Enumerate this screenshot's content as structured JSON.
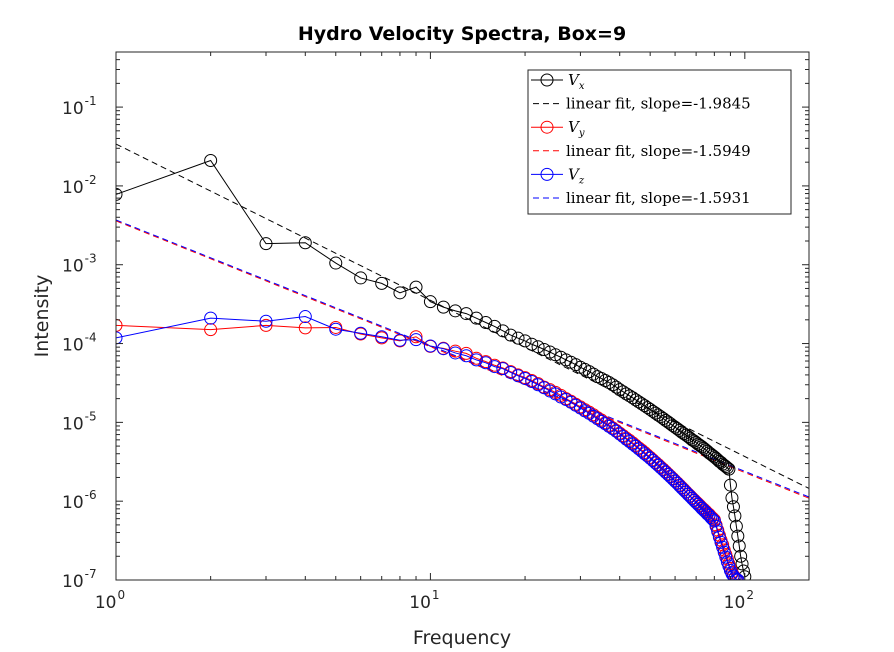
{
  "chart_data": {
    "type": "line",
    "title": "Hydro Velocity Spectra, Box=9",
    "xlabel": "Frequency",
    "ylabel": "Intensity",
    "xscale": "log",
    "yscale": "log",
    "xlim": [
      1,
      160
    ],
    "ylim": [
      1e-07,
      0.5
    ],
    "x_ticks": [
      {
        "value": 1,
        "base": "10",
        "exp": "0"
      },
      {
        "value": 10,
        "base": "10",
        "exp": "1"
      },
      {
        "value": 100,
        "base": "10",
        "exp": "2"
      }
    ],
    "y_ticks": [
      {
        "value": 1e-07,
        "base": "10",
        "exp": "-7"
      },
      {
        "value": 1e-06,
        "base": "10",
        "exp": "-6"
      },
      {
        "value": 1e-05,
        "base": "10",
        "exp": "-5"
      },
      {
        "value": 0.0001,
        "base": "10",
        "exp": "-4"
      },
      {
        "value": 0.001,
        "base": "10",
        "exp": "-3"
      },
      {
        "value": 0.01,
        "base": "10",
        "exp": "-2"
      },
      {
        "value": 0.1,
        "base": "10",
        "exp": "-1"
      }
    ],
    "grid": false,
    "legend_position": "top-right",
    "series": [
      {
        "name": "Vx",
        "subscript": "x",
        "color": "#000000",
        "kind": "markers",
        "x": [
          1,
          2,
          3,
          4,
          5,
          6,
          7,
          8,
          9,
          10,
          11,
          12,
          13,
          14,
          15,
          16,
          17,
          18,
          19,
          20,
          21,
          22,
          23,
          24,
          25,
          26,
          27,
          28,
          29,
          30,
          31,
          32,
          33,
          34,
          35,
          36,
          37,
          38,
          39,
          40,
          41,
          42,
          43,
          44,
          45,
          46,
          47,
          48,
          49,
          50,
          51,
          52,
          53,
          54,
          55,
          56,
          57,
          58,
          59,
          60,
          61,
          62,
          63,
          64,
          65,
          66,
          67,
          68,
          69,
          70,
          71,
          72,
          73,
          74,
          75,
          76,
          77,
          78,
          79,
          80,
          81,
          82,
          83,
          84,
          85,
          86,
          87,
          88,
          89,
          90,
          91,
          92,
          93,
          94,
          95,
          96,
          97,
          98,
          99,
          100
        ],
        "y": [
          0.0078,
          0.021,
          0.00185,
          0.0019,
          0.00105,
          0.00068,
          0.00058,
          0.00044,
          0.00052,
          0.00034,
          0.00029,
          0.00026,
          0.00024,
          0.00021,
          0.000185,
          0.000165,
          0.000145,
          0.000128,
          0.000117,
          0.000108,
          9.8e-05,
          9.1e-05,
          8.4e-05,
          7.8e-05,
          7.2e-05,
          6.7e-05,
          6.2e-05,
          5.8e-05,
          5.4e-05,
          5e-05,
          4.7e-05,
          4.4e-05,
          4.1e-05,
          3.8e-05,
          3.6e-05,
          3.4e-05,
          3.2e-05,
          3e-05,
          2.8e-05,
          2.6e-05,
          2.45e-05,
          2.3e-05,
          2.17e-05,
          2.05e-05,
          1.93e-05,
          1.82e-05,
          1.72e-05,
          1.63e-05,
          1.54e-05,
          1.46e-05,
          1.38e-05,
          1.31e-05,
          1.24e-05,
          1.18e-05,
          1.12e-05,
          1.06e-05,
          1.01e-05,
          9.6e-06,
          9.1e-06,
          8.7e-06,
          8.3e-06,
          7.9e-06,
          7.5e-06,
          7.2e-06,
          6.9e-06,
          6.6e-06,
          6.3e-06,
          6e-06,
          5.8e-06,
          5.55e-06,
          5.3e-06,
          5.1e-06,
          4.9e-06,
          4.7e-06,
          4.5e-06,
          4.3e-06,
          4.1e-06,
          3.95e-06,
          3.8e-06,
          3.65e-06,
          3.5e-06,
          3.35e-06,
          3.2e-06,
          3.1e-06,
          2.95e-06,
          2.85e-06,
          2.75e-06,
          2.65e-06,
          2.55e-06,
          1.6e-06,
          1.1e-06,
          8.5e-07,
          6.5e-07,
          4.8e-07,
          3.6e-07,
          2.7e-07,
          2e-07,
          1.6e-07,
          1.3e-07,
          1.1e-07
        ]
      },
      {
        "name": "linear fit, slope=-1.9845",
        "color": "#000000",
        "kind": "dashed",
        "x": [
          1,
          160
        ],
        "y": [
          0.034,
          1.45e-06
        ]
      },
      {
        "name": "Vy",
        "subscript": "y",
        "color": "#ff0000",
        "kind": "markers",
        "x": [
          1,
          2,
          3,
          4,
          5,
          6,
          7,
          8,
          9,
          10,
          11,
          12,
          13,
          14,
          15,
          16,
          17,
          18,
          19,
          20,
          21,
          22,
          23,
          24,
          25,
          26,
          27,
          28,
          29,
          30,
          31,
          32,
          33,
          34,
          35,
          36,
          37,
          38,
          39,
          40,
          41,
          42,
          43,
          44,
          45,
          46,
          47,
          48,
          49,
          50,
          51,
          52,
          53,
          54,
          55,
          56,
          57,
          58,
          59,
          60,
          61,
          62,
          63,
          64,
          65,
          66,
          67,
          68,
          69,
          70,
          71,
          72,
          73,
          74,
          75,
          76,
          77,
          78,
          79,
          80,
          81,
          82,
          83,
          84,
          85,
          86,
          87,
          88,
          89,
          90,
          91,
          92,
          93,
          94,
          95
        ],
        "y": [
          0.00017,
          0.00015,
          0.00017,
          0.000158,
          0.00016,
          0.000132,
          0.000118,
          0.000108,
          0.000122,
          9.2e-05,
          8.7e-05,
          8e-05,
          7.5e-05,
          6.5e-05,
          5.9e-05,
          5.3e-05,
          4.9e-05,
          4.4e-05,
          4e-05,
          3.7e-05,
          3.4e-05,
          3.1e-05,
          2.8e-05,
          2.6e-05,
          2.4e-05,
          2.2e-05,
          2e-05,
          1.85e-05,
          1.7e-05,
          1.57e-05,
          1.45e-05,
          1.35e-05,
          1.25e-05,
          1.15e-05,
          1.07e-05,
          9.9e-06,
          9.2e-06,
          8.5e-06,
          7.9e-06,
          7.3e-06,
          6.8e-06,
          6.3e-06,
          5.9e-06,
          5.5e-06,
          5.1e-06,
          4.75e-06,
          4.45e-06,
          4.15e-06,
          3.85e-06,
          3.6e-06,
          3.35e-06,
          3.12e-06,
          2.92e-06,
          2.72e-06,
          2.55e-06,
          2.38e-06,
          2.22e-06,
          2.08e-06,
          1.95e-06,
          1.82e-06,
          1.71e-06,
          1.6e-06,
          1.5e-06,
          1.41e-06,
          1.32e-06,
          1.24e-06,
          1.17e-06,
          1.1e-06,
          1.04e-06,
          9.8e-07,
          9.3e-07,
          8.8e-07,
          8.3e-07,
          7.9e-07,
          7.5e-07,
          7.1e-07,
          6.8e-07,
          6.4e-07,
          6.1e-07,
          5.8e-07,
          5e-07,
          4.3e-07,
          3.7e-07,
          3.2e-07,
          2.8e-07,
          2.4e-07,
          2.1e-07,
          1.85e-07,
          1.6e-07,
          1.4e-07,
          1.25e-07,
          1.15e-07,
          1.07e-07,
          1.02e-07,
          1e-07
        ]
      },
      {
        "name": "linear fit, slope=-1.5949",
        "color": "#ff0000",
        "kind": "dashed",
        "x": [
          1,
          160
        ],
        "y": [
          0.0036,
          1.09e-06
        ]
      },
      {
        "name": "Vz",
        "subscript": "z",
        "color": "#0000ff",
        "kind": "markers",
        "x": [
          1,
          2,
          3,
          4,
          5,
          6,
          7,
          8,
          9,
          10,
          11,
          12,
          13,
          14,
          15,
          16,
          17,
          18,
          19,
          20,
          21,
          22,
          23,
          24,
          25,
          26,
          27,
          28,
          29,
          30,
          31,
          32,
          33,
          34,
          35,
          36,
          37,
          38,
          39,
          40,
          41,
          42,
          43,
          44,
          45,
          46,
          47,
          48,
          49,
          50,
          51,
          52,
          53,
          54,
          55,
          56,
          57,
          58,
          59,
          60,
          61,
          62,
          63,
          64,
          65,
          66,
          67,
          68,
          69,
          70,
          71,
          72,
          73,
          74,
          75,
          76,
          77,
          78,
          79,
          80,
          81,
          82,
          83,
          84,
          85,
          86,
          87,
          88,
          89,
          90,
          91,
          92,
          93,
          94,
          95
        ],
        "y": [
          0.000118,
          0.00021,
          0.000192,
          0.00022,
          0.000152,
          0.000135,
          0.000122,
          0.00011,
          0.000112,
          9.3e-05,
          8.6e-05,
          7.6e-05,
          7e-05,
          6.2e-05,
          5.7e-05,
          5.1e-05,
          4.8e-05,
          4.3e-05,
          3.9e-05,
          3.6e-05,
          3.3e-05,
          3e-05,
          2.75e-05,
          2.5e-05,
          2.3e-05,
          2.1e-05,
          1.95e-05,
          1.8e-05,
          1.65e-05,
          1.52e-05,
          1.4e-05,
          1.3e-05,
          1.2e-05,
          1.11e-05,
          1.03e-05,
          9.6e-06,
          8.9e-06,
          8.3e-06,
          7.7e-06,
          7.1e-06,
          6.6e-06,
          6.1e-06,
          5.7e-06,
          5.3e-06,
          4.95e-06,
          4.6e-06,
          4.3e-06,
          4e-06,
          3.75e-06,
          3.5e-06,
          3.27e-06,
          3.05e-06,
          2.85e-06,
          2.66e-06,
          2.49e-06,
          2.33e-06,
          2.18e-06,
          2.04e-06,
          1.91e-06,
          1.79e-06,
          1.68e-06,
          1.57e-06,
          1.47e-06,
          1.38e-06,
          1.3e-06,
          1.22e-06,
          1.15e-06,
          1.08e-06,
          1.02e-06,
          9.6e-07,
          9.1e-07,
          8.6e-07,
          8.1e-07,
          7.7e-07,
          7.3e-07,
          6.9e-07,
          6.6e-07,
          6.2e-07,
          5.9e-07,
          5.6e-07,
          4.8e-07,
          4.1e-07,
          3.5e-07,
          3e-07,
          2.6e-07,
          2.25e-07,
          1.95e-07,
          1.7e-07,
          1.5e-07,
          1.32e-07,
          1.2e-07,
          1.12e-07,
          1.06e-07,
          1.02e-07,
          1e-07
        ]
      },
      {
        "name": "linear fit, slope=-1.5931",
        "color": "#0000ff",
        "kind": "dashed",
        "x": [
          1,
          160
        ],
        "y": [
          0.0037,
          1.13e-06
        ]
      }
    ]
  }
}
